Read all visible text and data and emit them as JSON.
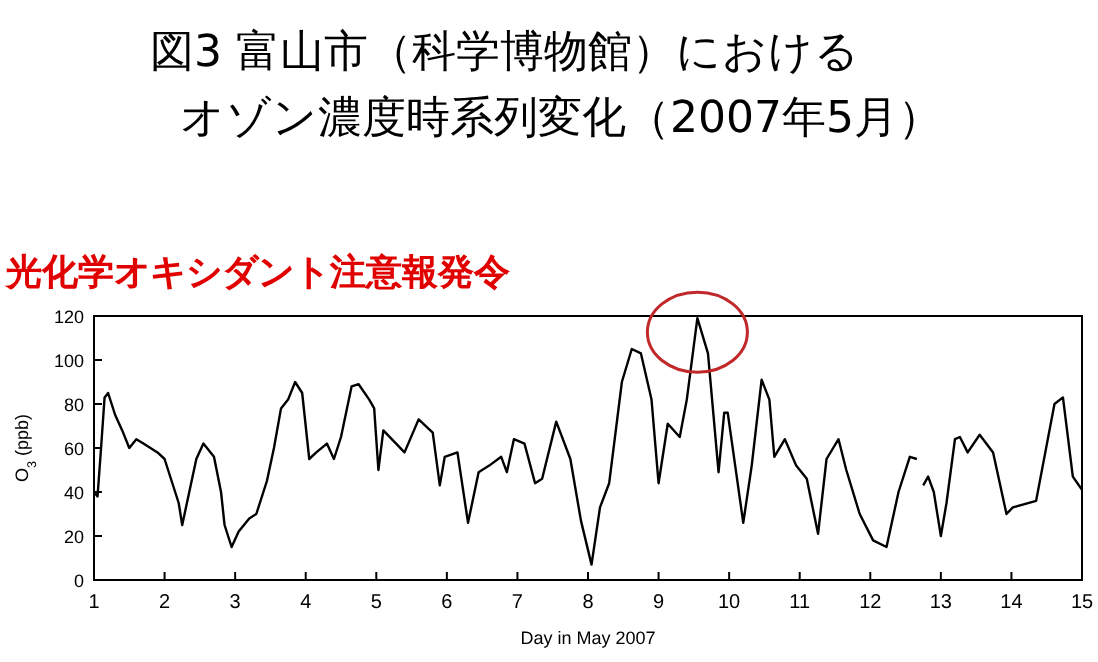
{
  "chart_data": {
    "type": "line",
    "title": "図3  富山市（科学博物館）における",
    "subtitle": "オゾン濃度時系列変化（2007年5月）",
    "xlabel": "Day in May 2007",
    "ylabel": "O$_{3}$ (ppb)",
    "annotations": [
      "光化学オキシダント注意報発令"
    ],
    "xlim": [
      1,
      15
    ],
    "xticks": [
      1,
      2,
      3,
      4,
      5,
      6,
      7,
      8,
      9,
      10,
      11,
      12,
      13,
      14,
      15
    ],
    "ylim": [
      0,
      120
    ],
    "yticks": [
      0,
      20,
      40,
      60,
      80,
      100,
      120
    ],
    "grid": false,
    "marker": "none",
    "line_style": "solid",
    "series": [
      {
        "color": "#000000",
        "x": [
          1,
          1.05,
          1.1,
          1.15,
          1.2,
          1.3,
          1.4,
          1.5,
          1.6,
          1.7,
          1.8,
          1.9,
          2,
          2.1,
          2.2,
          2.25,
          2.35,
          2.45,
          2.55,
          2.7,
          2.8,
          2.85,
          2.95,
          3.05,
          3.2,
          3.3,
          3.45,
          3.55,
          3.65,
          3.75,
          3.85,
          3.95,
          4.05,
          4.15,
          4.3,
          4.4,
          4.5,
          4.65,
          4.75,
          4.9,
          4.97,
          5.03,
          5.1,
          5.4,
          5.6,
          5.8,
          5.9,
          5.97,
          6.15,
          6.3,
          6.45,
          6.6,
          6.77,
          6.85,
          6.95,
          7.1,
          7.25,
          7.35,
          7.55,
          7.75,
          7.9,
          8.05,
          8.17,
          8.3,
          8.48,
          8.62,
          8.75,
          8.9,
          9,
          9.13,
          9.3,
          9.4,
          9.55,
          9.7,
          9.85,
          9.93,
          9.98,
          10.2,
          10.32,
          10.46,
          10.57,
          10.64,
          10.79,
          10.95,
          11.1,
          11.26,
          11.38,
          11.55,
          11.66,
          11.85,
          12.04,
          12.23,
          12.4,
          12.56,
          12.66,
          12.7,
          12.75,
          12.82,
          12.9,
          13,
          13.08,
          13.2,
          13.27,
          13.38,
          13.55,
          13.74,
          13.93,
          14.02,
          14.35,
          14.48,
          14.61,
          14.73,
          14.87,
          15
        ],
        "values": [
          40,
          38,
          60,
          83,
          85,
          75,
          68,
          60,
          64,
          62,
          60,
          58,
          55,
          45,
          35,
          25,
          40,
          55,
          62,
          56,
          40,
          25,
          15,
          22,
          28,
          30,
          45,
          60,
          78,
          82,
          90,
          85,
          55,
          58,
          62,
          55,
          65,
          88,
          89,
          82,
          78,
          50,
          68,
          58,
          73,
          67,
          43,
          56,
          58,
          26,
          49,
          52,
          56,
          49,
          64,
          62,
          44,
          46,
          72,
          55,
          27,
          7,
          33,
          44,
          90,
          105,
          103,
          82,
          44,
          71,
          65,
          82,
          119,
          103,
          49,
          76,
          76,
          26,
          52,
          91,
          82,
          56,
          64,
          52,
          46,
          21,
          55,
          64,
          50,
          30,
          18,
          15,
          40,
          56,
          55,
          null,
          43,
          47,
          40,
          20,
          35,
          64,
          65,
          58,
          66,
          58,
          30,
          33,
          36,
          58,
          80,
          83,
          47,
          41
        ]
      }
    ]
  }
}
